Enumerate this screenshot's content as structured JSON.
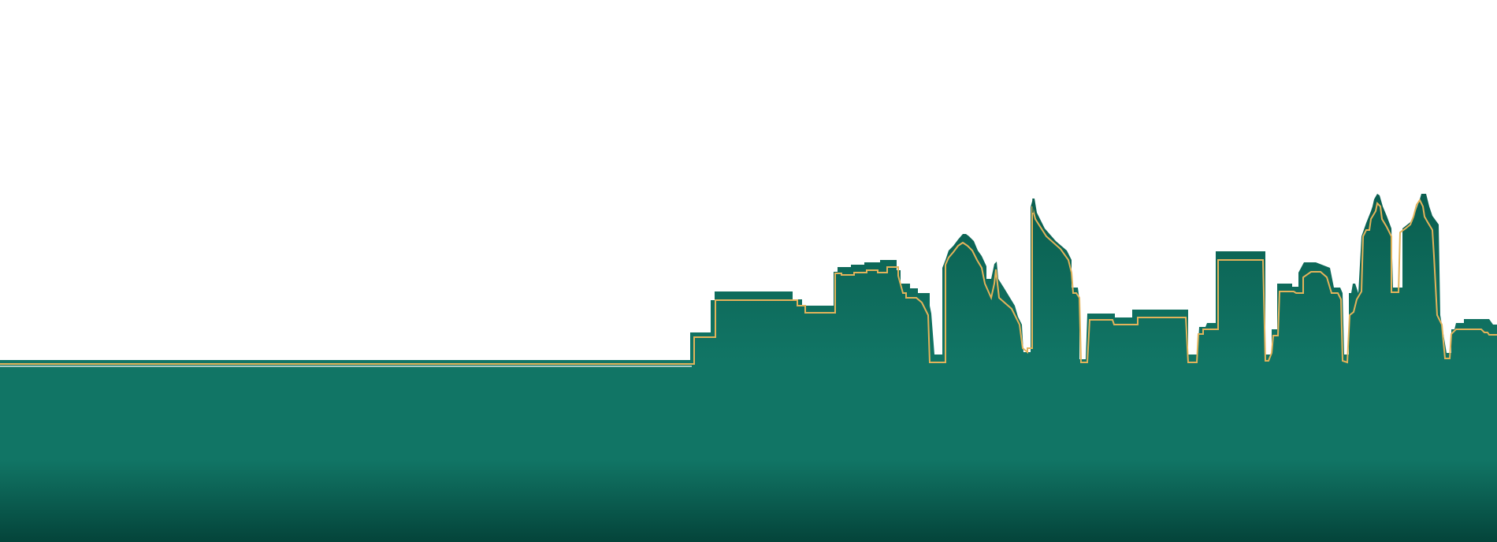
{
  "scene": {
    "description_visible_text": "",
    "colors": {
      "background": "#ffffff",
      "skyline_dark": "#0a5e4f",
      "ground_mid": "#117565",
      "ground_bottom": "#04443a",
      "gold_outline": "#e3b35a",
      "white_inner_line": "#ffffff"
    }
  }
}
